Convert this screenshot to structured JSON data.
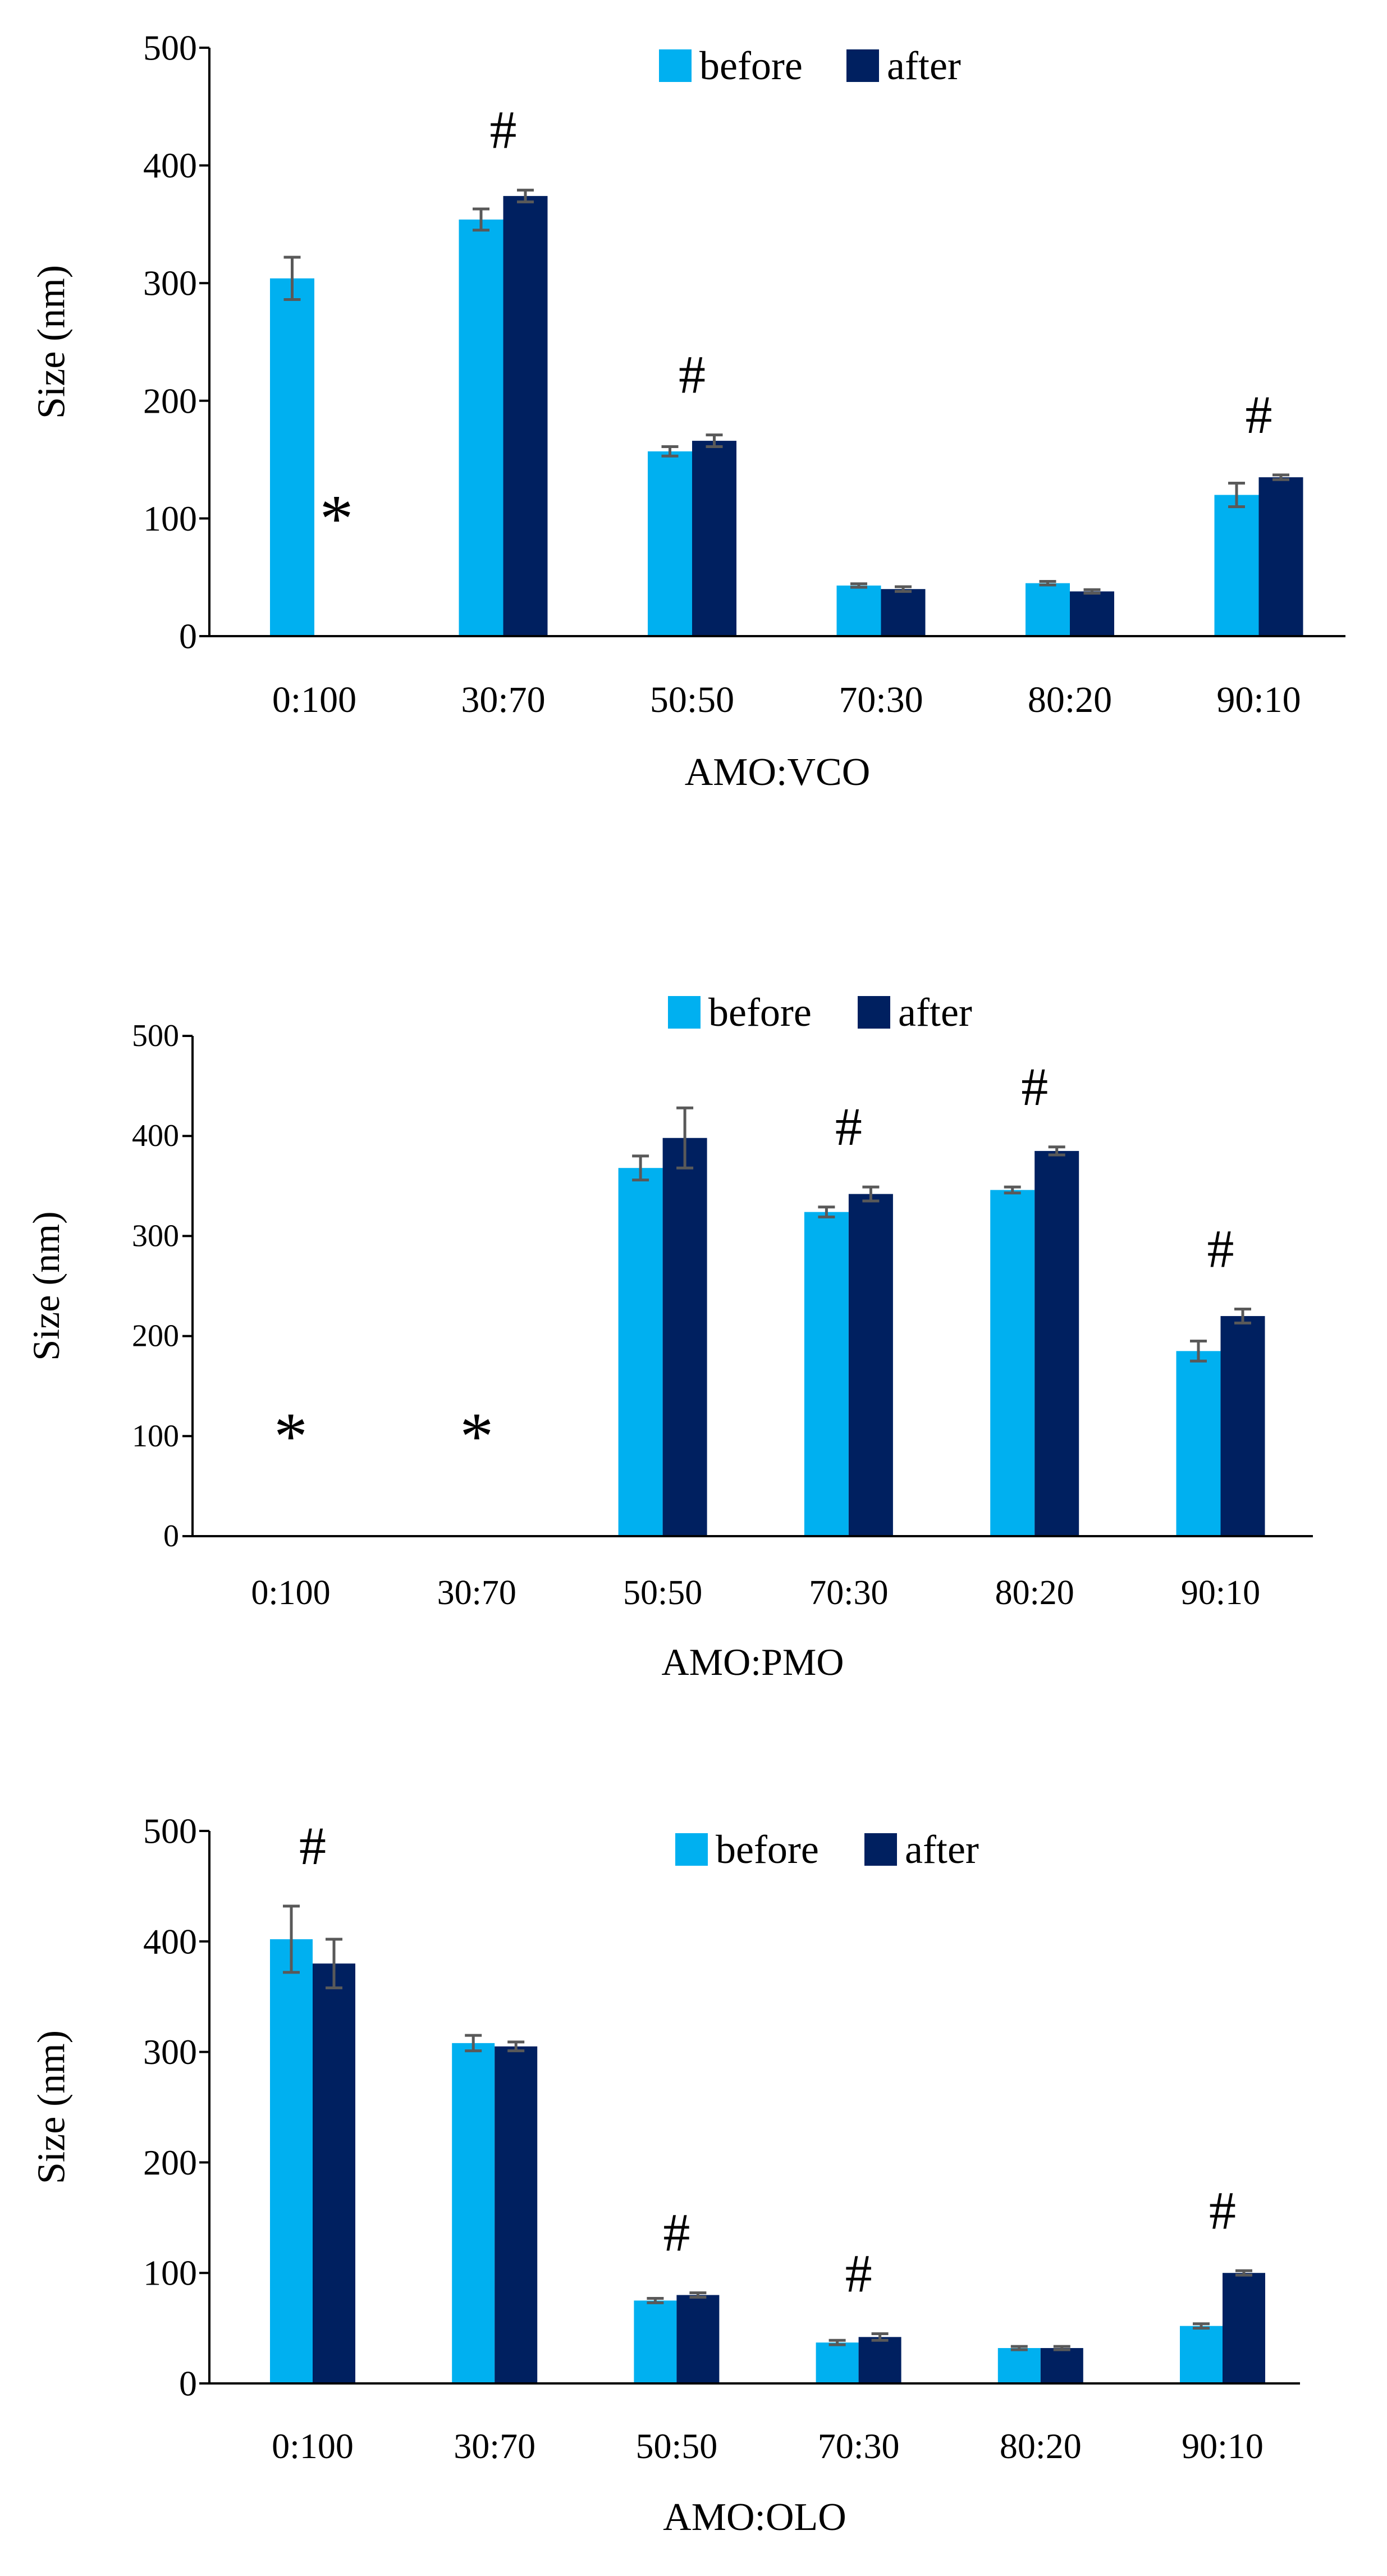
{
  "colors": {
    "before": "#00B0F0",
    "after": "#002060",
    "axis": "#000000",
    "error_bar": "#595959"
  },
  "chart_data": [
    {
      "type": "bar",
      "categories": [
        "0:100",
        "30:70",
        "50:50",
        "70:30",
        "80:20",
        "90:10"
      ],
      "xlabel": "AMO:VCO",
      "ylabel": "Size (nm)",
      "ylim": [
        0,
        500
      ],
      "yticks": [
        0,
        100,
        200,
        300,
        400,
        500
      ],
      "yticklabels": [
        "0",
        "100",
        "200",
        "300",
        "400",
        "500"
      ],
      "legend": "top-center",
      "grid": false,
      "series": [
        {
          "name": "before",
          "values": [
            304,
            354,
            157,
            43,
            45,
            120
          ],
          "errors": [
            18,
            9,
            4,
            1.5,
            1.5,
            10
          ]
        },
        {
          "name": "after",
          "values": [
            null,
            374,
            166,
            40,
            38,
            135
          ],
          "errors": [
            null,
            5,
            5,
            2,
            1.5,
            2
          ]
        }
      ],
      "annotations": [
        {
          "category": "0:100",
          "text": "*"
        },
        {
          "category": "30:70",
          "text": "#"
        },
        {
          "category": "50:50",
          "text": "#"
        },
        {
          "category": "90:10",
          "text": "#"
        }
      ]
    },
    {
      "type": "bar",
      "categories": [
        "0:100",
        "30:70",
        "50:50",
        "70:30",
        "80:20",
        "90:10"
      ],
      "xlabel": "AMO:PMO",
      "ylabel": "Size (nm)",
      "ylim": [
        0,
        500
      ],
      "yticks": [
        0,
        100,
        200,
        300,
        400,
        500
      ],
      "yticklabels": [
        "0",
        "100",
        "200",
        "300",
        "400",
        "500"
      ],
      "legend": "top-center",
      "grid": false,
      "series": [
        {
          "name": "before",
          "values": [
            null,
            null,
            368,
            324,
            346,
            185
          ],
          "errors": [
            null,
            null,
            12,
            5,
            3,
            10
          ]
        },
        {
          "name": "after",
          "values": [
            null,
            null,
            398,
            342,
            385,
            220
          ],
          "errors": [
            null,
            null,
            30,
            7,
            4,
            7
          ]
        }
      ],
      "annotations": [
        {
          "category": "0:100",
          "text": "*"
        },
        {
          "category": "30:70",
          "text": "*"
        },
        {
          "category": "70:30",
          "text": "#"
        },
        {
          "category": "80:20",
          "text": "#"
        },
        {
          "category": "90:10",
          "text": "#"
        }
      ]
    },
    {
      "type": "bar",
      "categories": [
        "0:100",
        "30:70",
        "50:50",
        "70:30",
        "80:20",
        "90:10"
      ],
      "xlabel": "AMO:OLO",
      "ylabel": "Size (nm)",
      "ylim": [
        0,
        500
      ],
      "yticks": [
        0,
        100,
        200,
        300,
        400,
        500
      ],
      "yticklabels": [
        "0",
        "100",
        "200",
        "300",
        "400",
        "500"
      ],
      "legend": "top-center",
      "grid": false,
      "series": [
        {
          "name": "before",
          "values": [
            402,
            308,
            75,
            37,
            32,
            52
          ],
          "errors": [
            30,
            7,
            2,
            2,
            1.5,
            2
          ]
        },
        {
          "name": "after",
          "values": [
            380,
            305,
            80,
            42,
            32,
            100
          ],
          "errors": [
            22,
            4,
            2,
            3,
            1.5,
            2
          ]
        }
      ],
      "annotations": [
        {
          "category": "0:100",
          "text": "#"
        },
        {
          "category": "50:50",
          "text": "#"
        },
        {
          "category": "70:30",
          "text": "#"
        },
        {
          "category": "90:10",
          "text": "#"
        }
      ]
    }
  ]
}
